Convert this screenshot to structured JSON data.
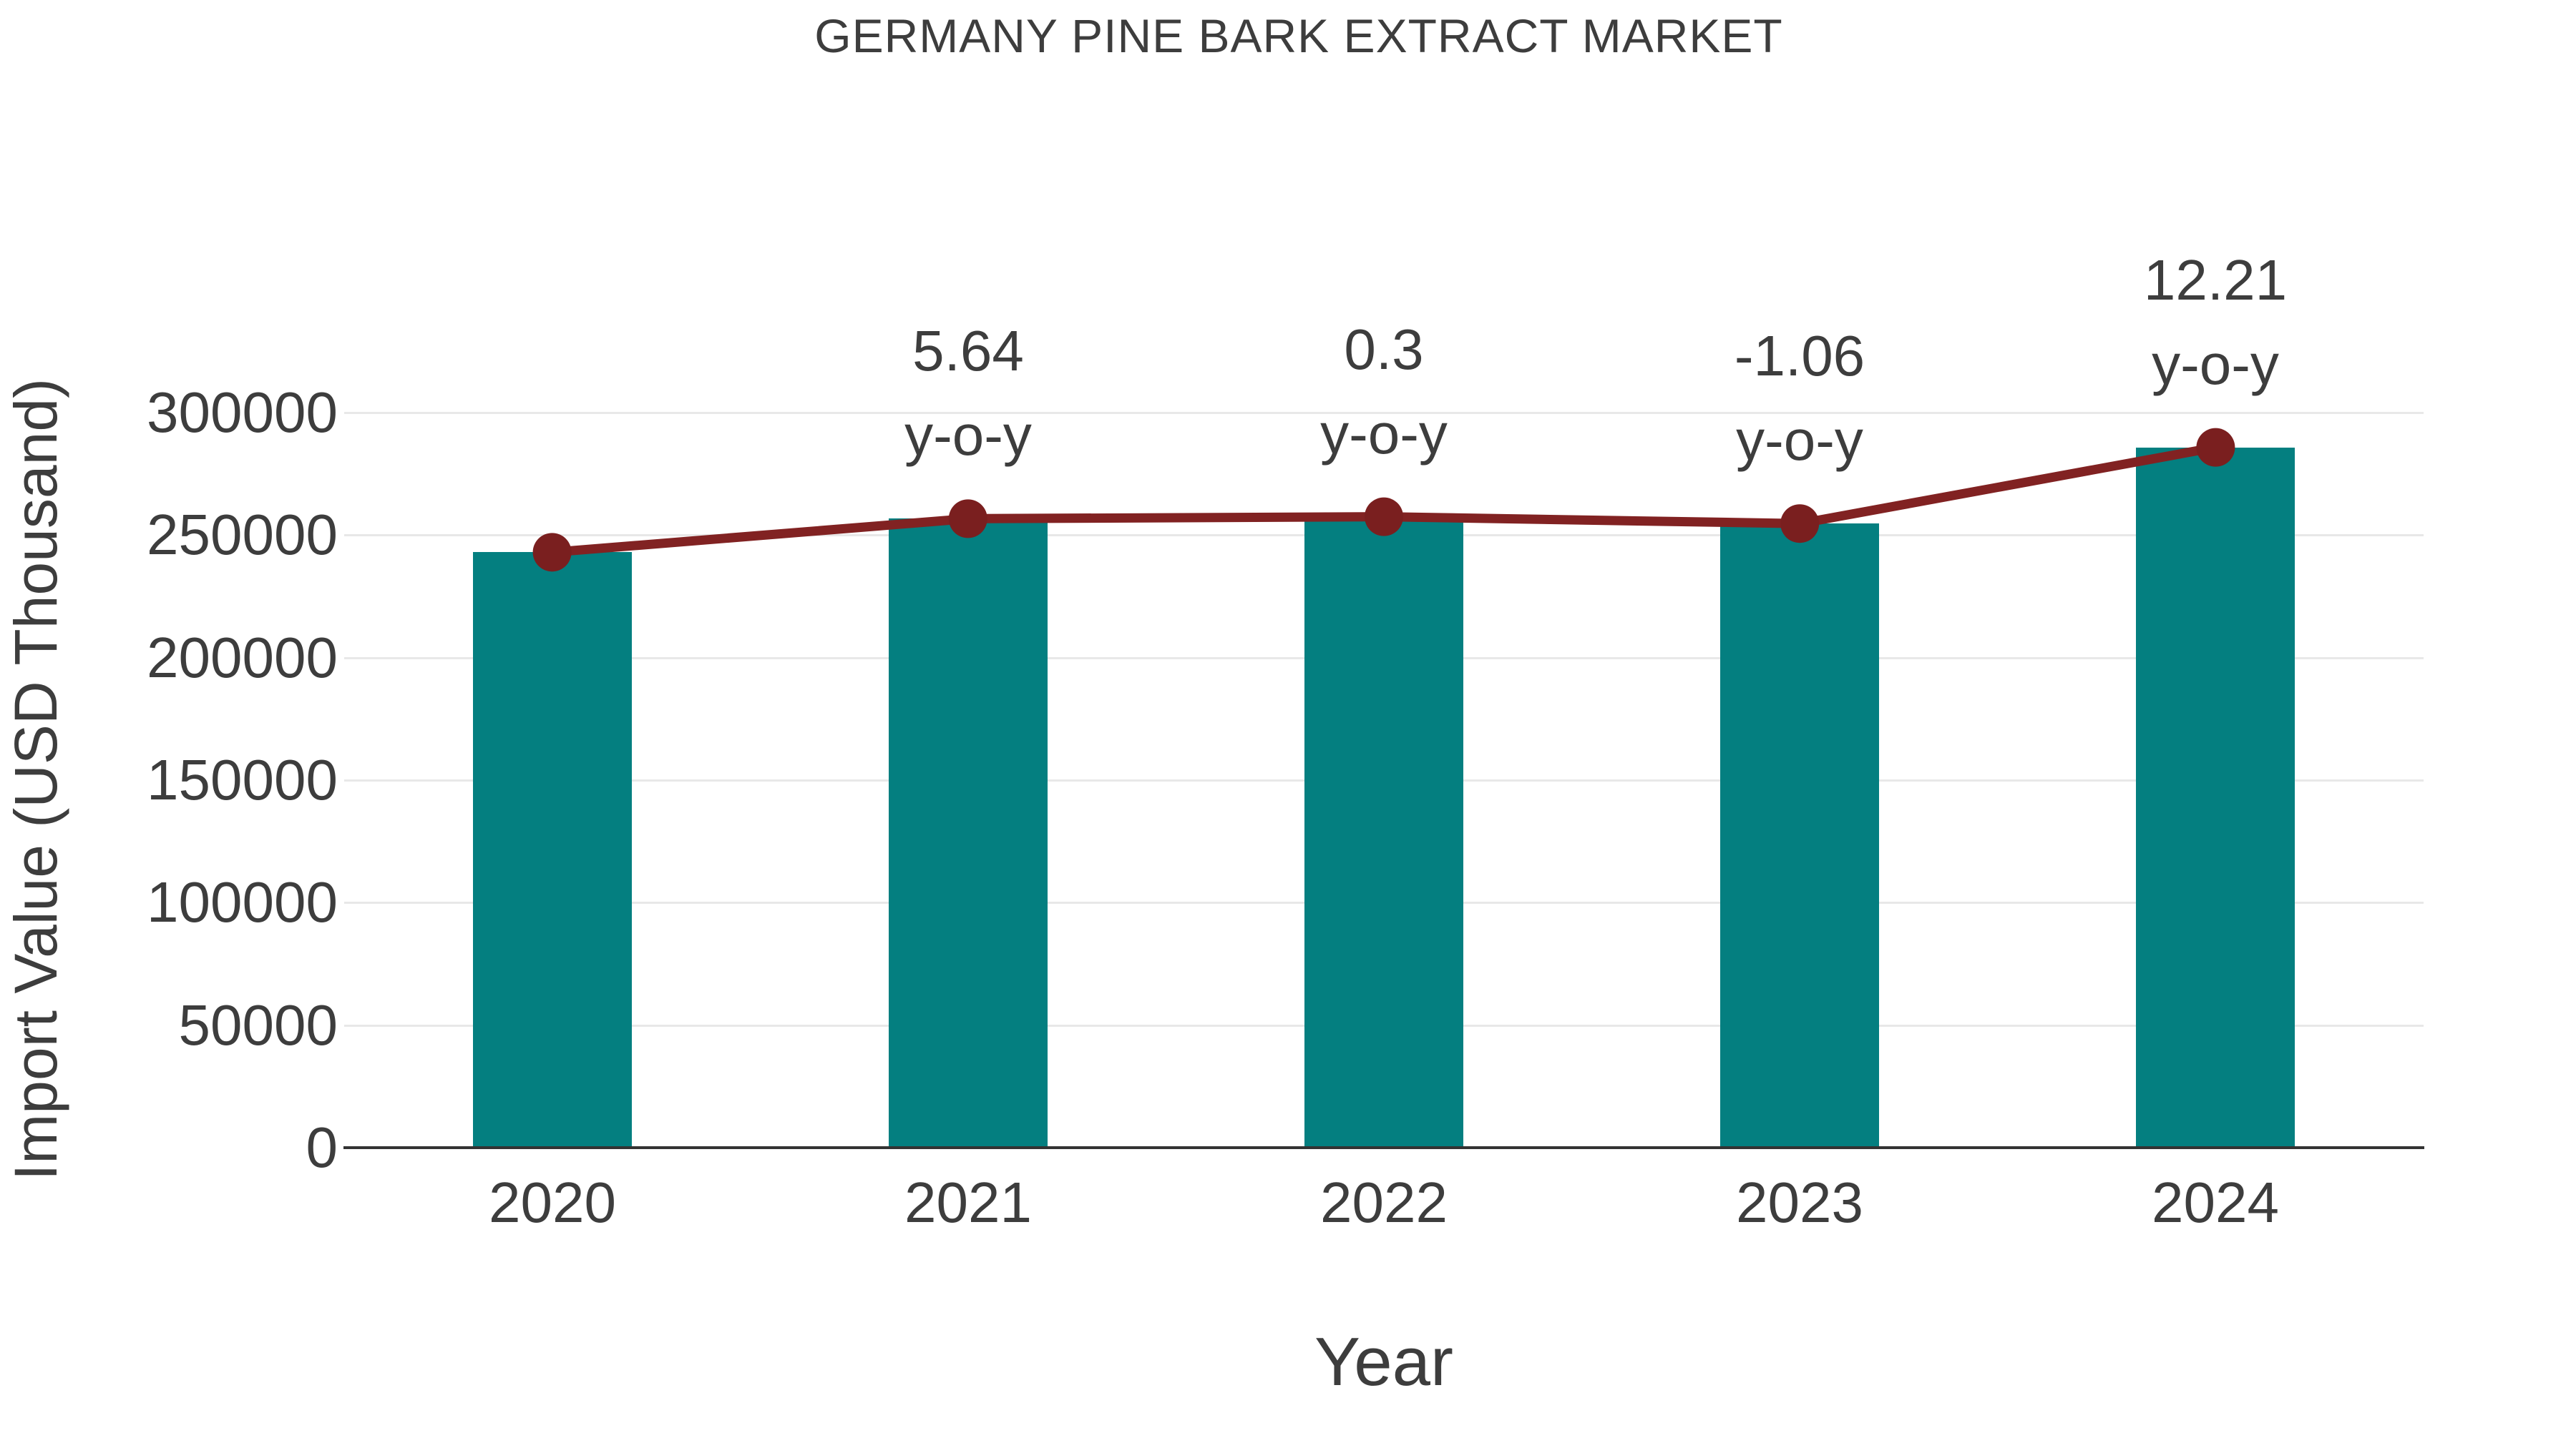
{
  "page": {
    "background": "#ffffff"
  },
  "chart_data": {
    "type": "bar",
    "combo": "bar+line",
    "title": "GERMANY PINE BARK EXTRACT MARKET",
    "xlabel": "Year",
    "ylabel": "Import Value (USD Thousand)",
    "categories": [
      "2020",
      "2021",
      "2022",
      "2023",
      "2024"
    ],
    "series": [
      {
        "name": "Import Value (USD Thousand)",
        "type": "bar",
        "color": "#047f80",
        "values": [
          243000,
          256700,
          257500,
          254700,
          285800
        ]
      },
      {
        "name": "Import Value trend line",
        "type": "line",
        "color": "#812222",
        "marker_color": "#7a1f1f",
        "values": [
          243000,
          256700,
          257500,
          254700,
          285800
        ]
      }
    ],
    "annotations": [
      {
        "category": "2021",
        "value": "5.64",
        "sub": "y-o-y"
      },
      {
        "category": "2022",
        "value": "0.3",
        "sub": "y-o-y"
      },
      {
        "category": "2023",
        "value": "-1.06",
        "sub": "y-o-y"
      },
      {
        "category": "2024",
        "value": "12.21",
        "sub": "y-o-y"
      }
    ],
    "yticks": [
      0,
      50000,
      100000,
      150000,
      200000,
      250000,
      300000
    ],
    "ylim": [
      0,
      300000
    ],
    "grid": true,
    "legend": false,
    "text_color": "#3d3d3d",
    "grid_color": "#e8e8e8",
    "axis_color": "#333333"
  }
}
